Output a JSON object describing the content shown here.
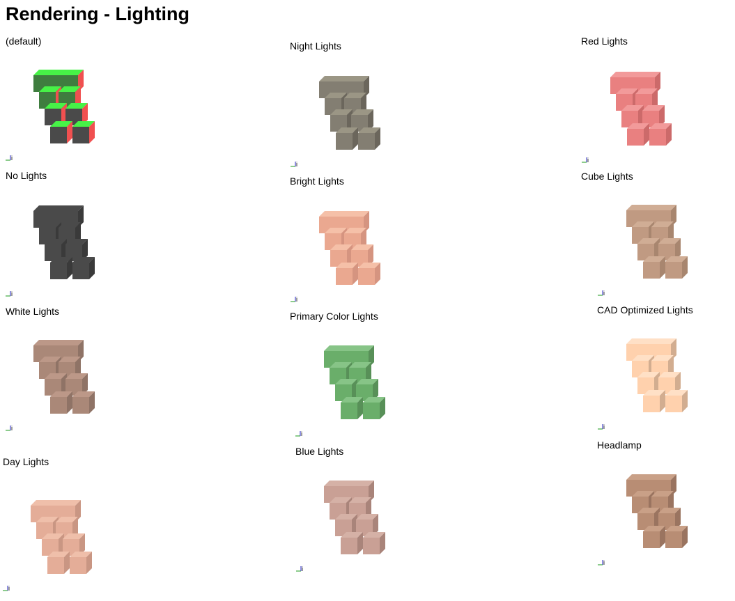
{
  "page": {
    "title": "Rendering - Lighting"
  },
  "axis_label": "i",
  "cells": [
    {
      "label": "(default)",
      "mode": "default",
      "colors": {
        "front": "#4a4a4a",
        "top": "#47f247",
        "side": "#f05050",
        "frontTop": "#3f7d3f"
      }
    },
    {
      "label": "Night Lights",
      "mode": "tint",
      "colors": {
        "front": "#837e72",
        "top": "#9b9685",
        "side": "#6b665c"
      }
    },
    {
      "label": "Red Lights",
      "mode": "tint",
      "colors": {
        "front": "#e98080",
        "top": "#f29a9a",
        "side": "#cc6a6a"
      }
    },
    {
      "label": "No Lights",
      "mode": "tint",
      "colors": {
        "front": "#4a4a4a",
        "top": "#4a4a4a",
        "side": "#3a3a3a"
      }
    },
    {
      "label": "Bright Lights",
      "mode": "tint",
      "colors": {
        "front": "#eaa890",
        "top": "#f5c0a8",
        "side": "#d59480"
      }
    },
    {
      "label": "Cube Lights",
      "mode": "tint",
      "colors": {
        "front": "#c09a82",
        "top": "#d0ad95",
        "side": "#a8866f"
      }
    },
    {
      "label": "White Lights",
      "mode": "tint",
      "colors": {
        "front": "#aa8878",
        "top": "#bc9888",
        "side": "#8f7366"
      }
    },
    {
      "label": "Primary Color Lights",
      "mode": "tint",
      "colors": {
        "front": "#6aae6a",
        "top": "#87c487",
        "side": "#589058"
      }
    },
    {
      "label": "CAD Optimized Lights",
      "mode": "tint",
      "colors": {
        "front": "#ffd1ad",
        "top": "#ffe0c6",
        "side": "#d2ad90"
      }
    },
    {
      "label": "Day Lights",
      "mode": "tint",
      "colors": {
        "front": "#e4ad98",
        "top": "#efbfaa",
        "side": "#c99683"
      }
    },
    {
      "label": "Blue Lights",
      "mode": "tint",
      "colors": {
        "front": "#c9a095",
        "top": "#d5b1a6",
        "side": "#a9847a"
      }
    },
    {
      "label": "Headlamp",
      "mode": "tint",
      "colors": {
        "front": "#b88d74",
        "top": "#c9a087",
        "side": "#9a7460"
      }
    }
  ]
}
